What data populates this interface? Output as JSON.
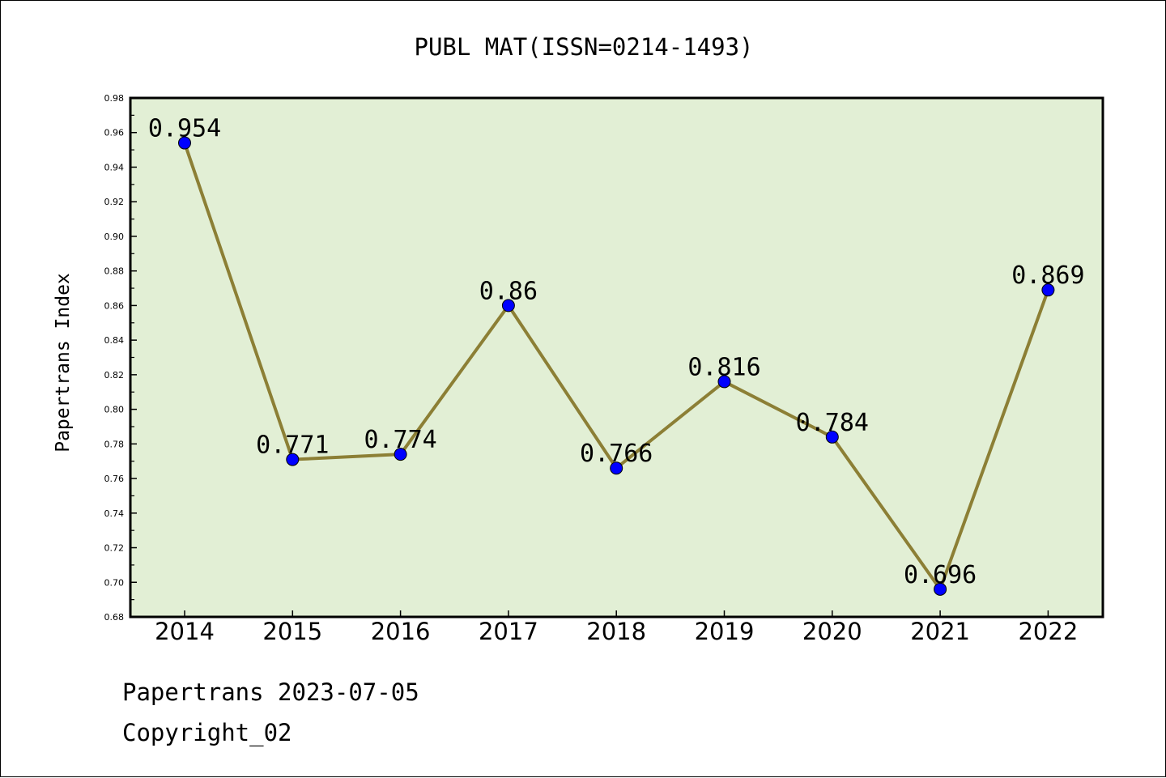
{
  "chart_data": {
    "type": "line",
    "title": "PUBL MAT(ISSN=0214-1493)",
    "xlabel": "",
    "ylabel": "Papertrans Index",
    "categories": [
      "2014",
      "2015",
      "2016",
      "2017",
      "2018",
      "2019",
      "2020",
      "2021",
      "2022"
    ],
    "series": [
      {
        "values": [
          0.954,
          0.771,
          0.774,
          0.86,
          0.766,
          0.816,
          0.784,
          0.696,
          0.869
        ],
        "data_labels": [
          "0.954",
          "0.771",
          "0.774",
          "0.86",
          "0.766",
          "0.816",
          "0.784",
          "0.696",
          "0.869"
        ]
      }
    ],
    "ylim": [
      0.68,
      0.98
    ],
    "yticks": [
      "0.68",
      "0.70",
      "0.72",
      "0.74",
      "0.76",
      "0.78",
      "0.80",
      "0.82",
      "0.84",
      "0.86",
      "0.88",
      "0.90",
      "0.92",
      "0.94",
      "0.96",
      "0.98"
    ],
    "grid": false,
    "legend": "none",
    "colors": {
      "plot_background": "#e2efd5",
      "line": "#8c7f35",
      "marker": "#0000ff"
    }
  },
  "footer": {
    "line1": "Papertrans 2023-07-05",
    "line2": "Copyright_02"
  }
}
